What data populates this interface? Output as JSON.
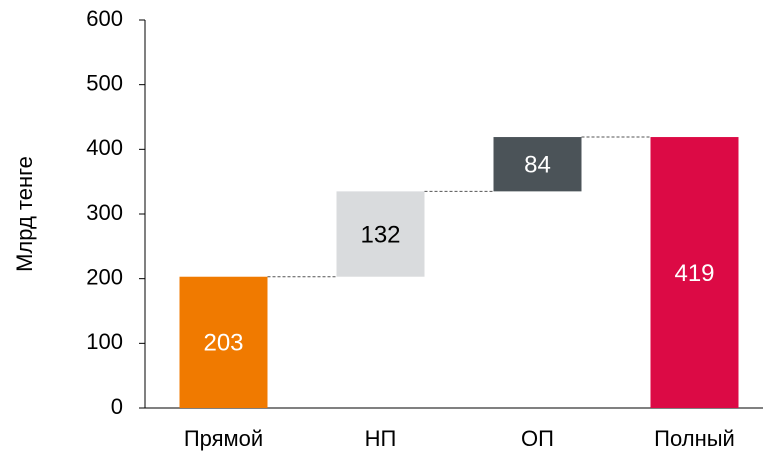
{
  "chart_data": {
    "type": "waterfall",
    "y_label": "Млрд тенге",
    "categories": [
      "Прямой",
      "НП",
      "ОП",
      "Полный"
    ],
    "values": [
      203,
      132,
      84,
      419
    ],
    "colors": [
      "#f07a00",
      "#d9dbdd",
      "#4b5358",
      "#dc0a45"
    ],
    "ylim": [
      0,
      600
    ],
    "yticks": [
      0,
      100,
      200,
      300,
      400,
      500,
      600
    ],
    "grid": false
  }
}
